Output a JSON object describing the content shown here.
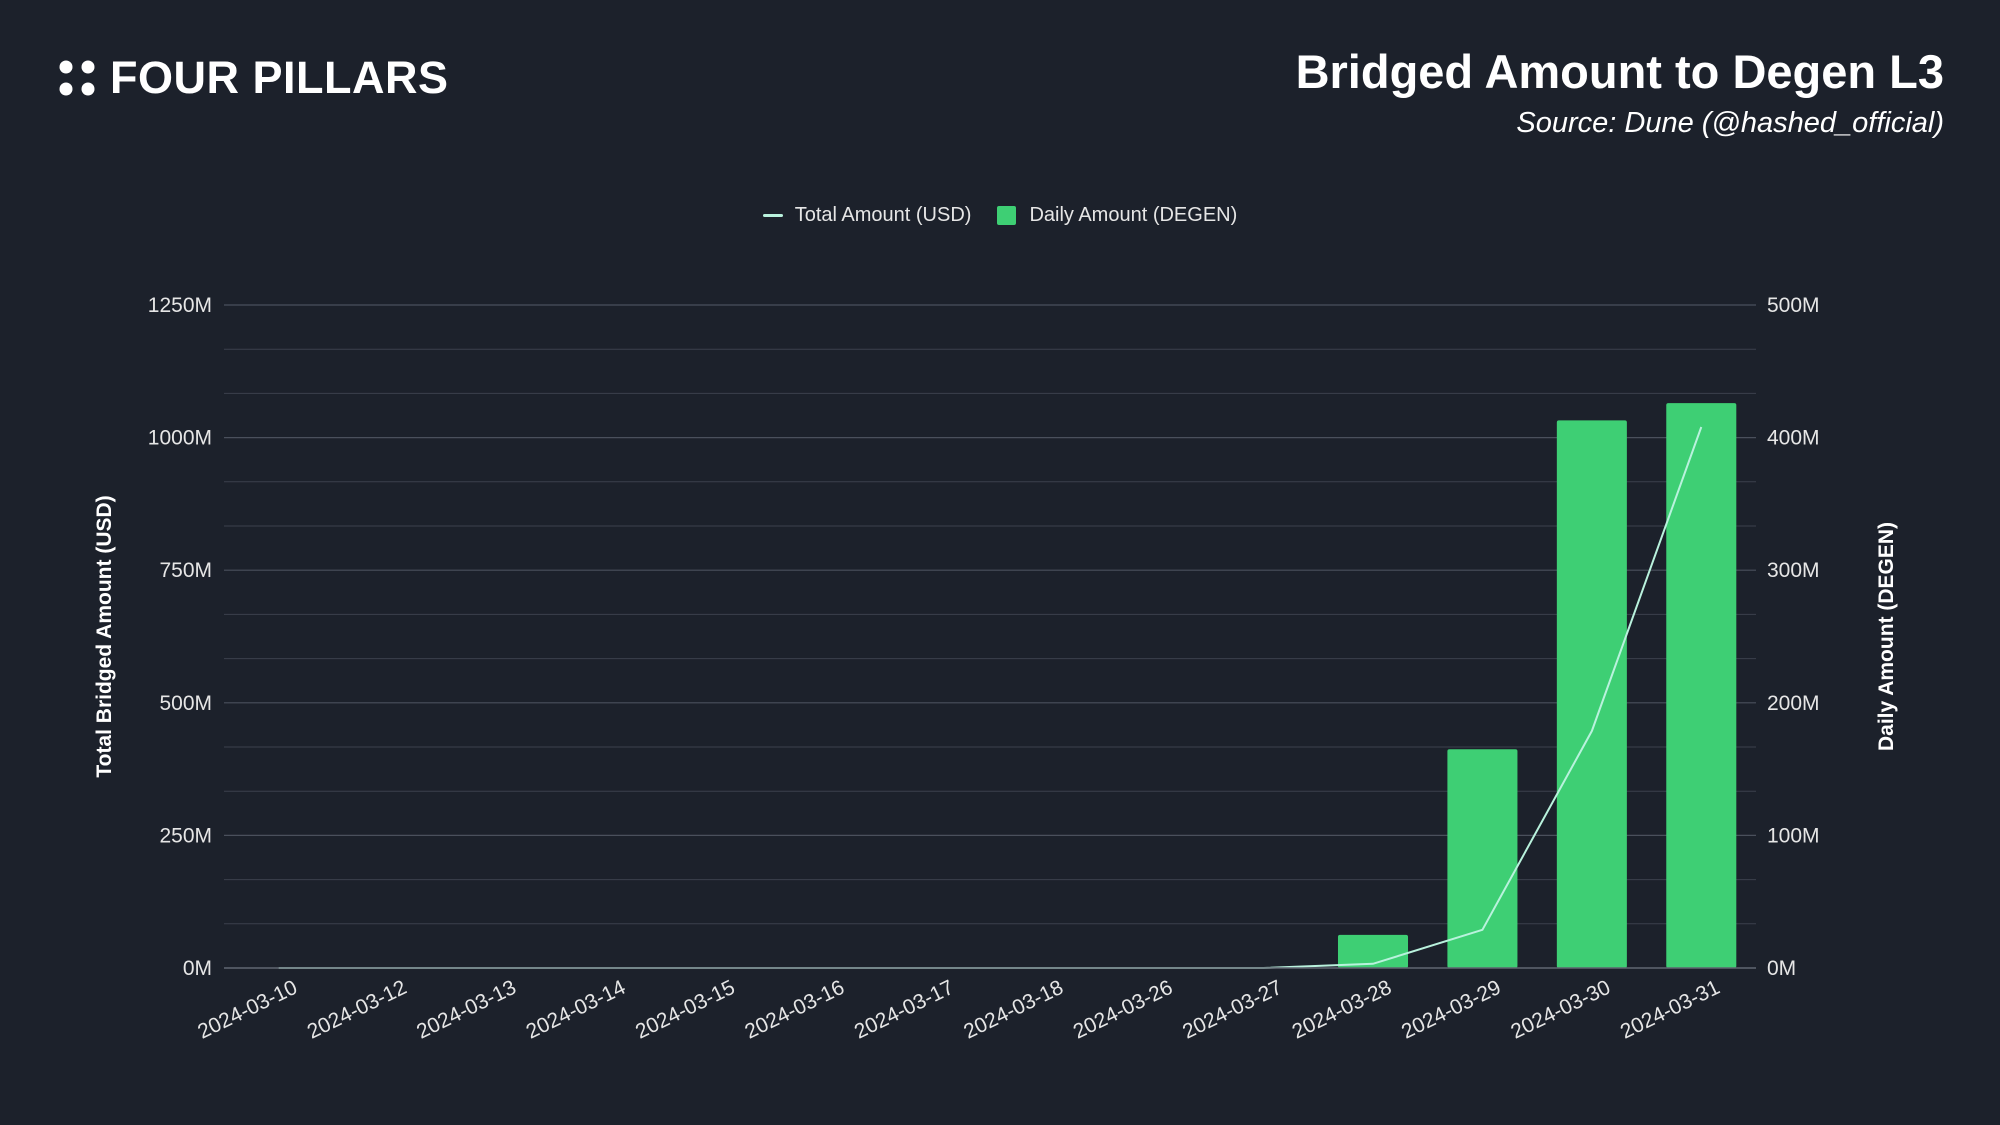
{
  "brand": {
    "name": "FOUR PILLARS"
  },
  "chart_data": {
    "type": "bar",
    "title": "Bridged Amount to Degen L3",
    "subtitle": "Source: Dune (@hashed_official)",
    "categories": [
      "2024-03-10",
      "2024-03-12",
      "2024-03-13",
      "2024-03-14",
      "2024-03-15",
      "2024-03-16",
      "2024-03-17",
      "2024-03-18",
      "2024-03-26",
      "2024-03-27",
      "2024-03-28",
      "2024-03-29",
      "2024-03-30",
      "2024-03-31"
    ],
    "series": [
      {
        "name": "Daily Amount (DEGEN)",
        "type": "bar",
        "axis": "right",
        "color": "#3ecf74",
        "values": [
          0,
          0,
          0,
          0,
          0,
          0,
          0,
          0,
          0,
          0,
          25000000,
          165000000,
          413000000,
          426000000
        ]
      },
      {
        "name": "Total Amount (USD)",
        "type": "line",
        "axis": "left",
        "color": "#b9f2dd",
        "values": [
          0,
          0,
          0,
          0,
          0,
          0,
          0,
          0,
          0,
          0,
          8000000,
          72000000,
          447000000,
          1020000000
        ]
      }
    ],
    "ylabel_left": "Total Bridged Amount (USD)",
    "ylabel_right": "Daily Amount (DEGEN)",
    "ylim_left": [
      0,
      1250000000
    ],
    "ylim_right": [
      0,
      500000000
    ],
    "yticks_left": [
      "0M",
      "250M",
      "500M",
      "750M",
      "1000M",
      "1250M"
    ],
    "yticks_right": [
      "0M",
      "100M",
      "200M",
      "300M",
      "400M",
      "500M"
    ],
    "grid": true,
    "legend_position": "top-center"
  }
}
